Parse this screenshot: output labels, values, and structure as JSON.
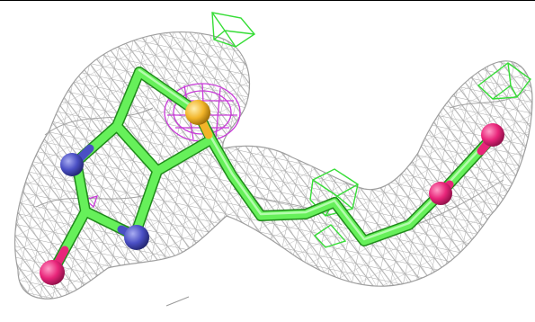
{
  "scene": {
    "subject": "ligand-in-electron-density",
    "colors": {
      "background": "#ffffff",
      "mesh": "#a9a9a9",
      "carbon": "#66f05a",
      "nitrogen": "#4a4fc4",
      "oxygen": "#e8257a",
      "sulfur": "#f2b52a",
      "magenta_map": "#c83ad8",
      "green_map": "#36dd36",
      "border": "#000000"
    },
    "atoms": [
      "sulfur",
      "nitrogen",
      "nitrogen",
      "oxygen",
      "oxygen",
      "oxygen"
    ],
    "icon": "molecule-structure-icon"
  }
}
